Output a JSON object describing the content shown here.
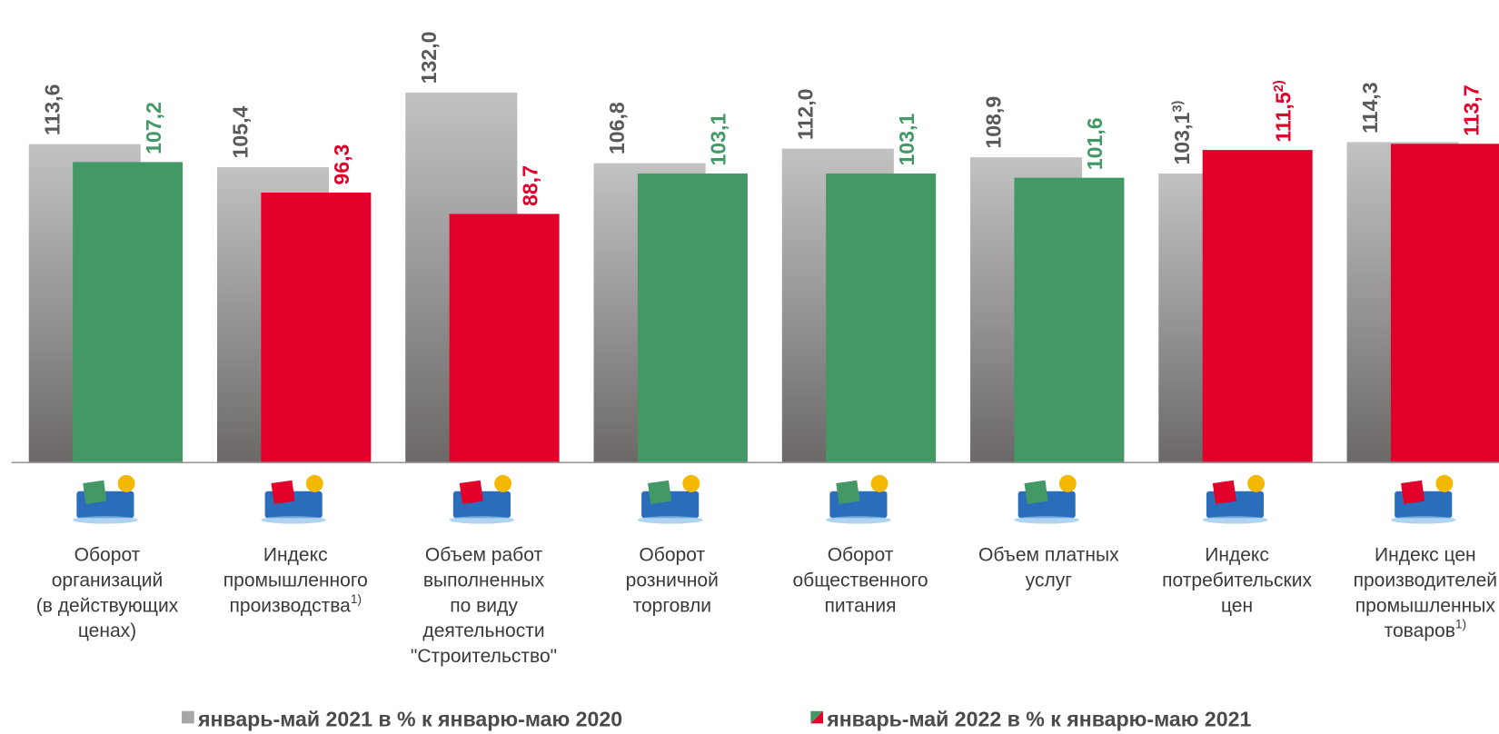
{
  "chart_data": {
    "type": "bar",
    "categories": [
      [
        "Оборот",
        "организаций",
        "(в действующих",
        "ценах)"
      ],
      [
        "Индекс",
        "промышленного",
        "производства"
      ],
      [
        "Объем работ",
        "выполненных",
        "по виду",
        "деятельности",
        "\"Строительство\""
      ],
      [
        "Оборот",
        "розничной",
        "торговли"
      ],
      [
        "Оборот",
        "общественного",
        "питания"
      ],
      [
        "Объем платных",
        "услуг"
      ],
      [
        "Индекс",
        "потребительских",
        "цен"
      ],
      [
        "Индекс цен",
        "производителей",
        "промышленных",
        "товаров"
      ]
    ],
    "category_notes": [
      null,
      "1)",
      null,
      null,
      null,
      null,
      null,
      "1)"
    ],
    "series": [
      {
        "name": "январь-май 2021 в % к январю-маю 2020",
        "color": "#a6a6a6",
        "gradient": [
          "#c2c2c2",
          "#6c6868"
        ],
        "label_color": "#595959",
        "values": [
          113.6,
          105.4,
          132.0,
          106.8,
          112.0,
          108.9,
          103.1,
          114.3
        ],
        "value_labels": [
          "113,6",
          "105,4",
          "132,0",
          "106,8",
          "112,0",
          "108,9",
          "103,1",
          "114,3"
        ],
        "value_label_notes": [
          null,
          null,
          null,
          null,
          null,
          null,
          "3)",
          null
        ]
      },
      {
        "name": "январь-май 2022 в % к январю-маю 2021",
        "colors": [
          "#439966",
          "#e2002a",
          "#e2002a",
          "#439966",
          "#439966",
          "#439966",
          "#e2002a",
          "#e2002a"
        ],
        "values": [
          107.2,
          96.3,
          88.7,
          103.1,
          103.1,
          101.6,
          111.5,
          113.7
        ],
        "value_labels": [
          "107,2",
          "96,3",
          "88,7",
          "103,1",
          "103,1",
          "101,6",
          "111,5",
          "113,7"
        ],
        "value_label_notes": [
          null,
          null,
          null,
          null,
          null,
          null,
          "2)",
          null
        ]
      }
    ],
    "ylim": [
      0,
      165
    ]
  }
}
